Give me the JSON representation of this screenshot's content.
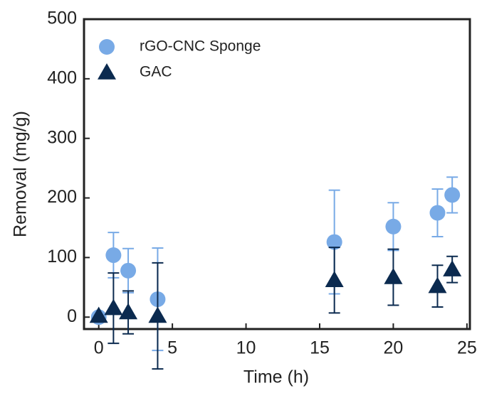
{
  "chart_data": {
    "type": "scatter",
    "x_label": "Time (h)",
    "y_label": "Removal (mg/g)",
    "x": [
      0,
      1,
      2,
      4,
      16,
      20,
      23,
      24
    ],
    "series": [
      {
        "name": "rGO-CNC Sponge",
        "color": "#78aae6",
        "marker": "circle",
        "values": [
          0,
          104,
          78,
          30,
          126,
          152,
          175,
          205
        ],
        "error": [
          0,
          38,
          37,
          86,
          87,
          40,
          40,
          30
        ]
      },
      {
        "name": "GAC",
        "color": "#0b2a4f",
        "marker": "triangle",
        "values": [
          2,
          15,
          8,
          2,
          62,
          67,
          52,
          80
        ],
        "error": [
          0,
          59,
          36,
          89,
          55,
          47,
          35,
          22
        ]
      }
    ],
    "xlim": [
      -1,
      25.2
    ],
    "ylim": [
      -20,
      500
    ],
    "xticks": [
      0,
      5,
      10,
      15,
      20,
      25
    ],
    "yticks": [
      0,
      100,
      200,
      300,
      400,
      500
    ],
    "grid": false,
    "legend": "upper left"
  }
}
